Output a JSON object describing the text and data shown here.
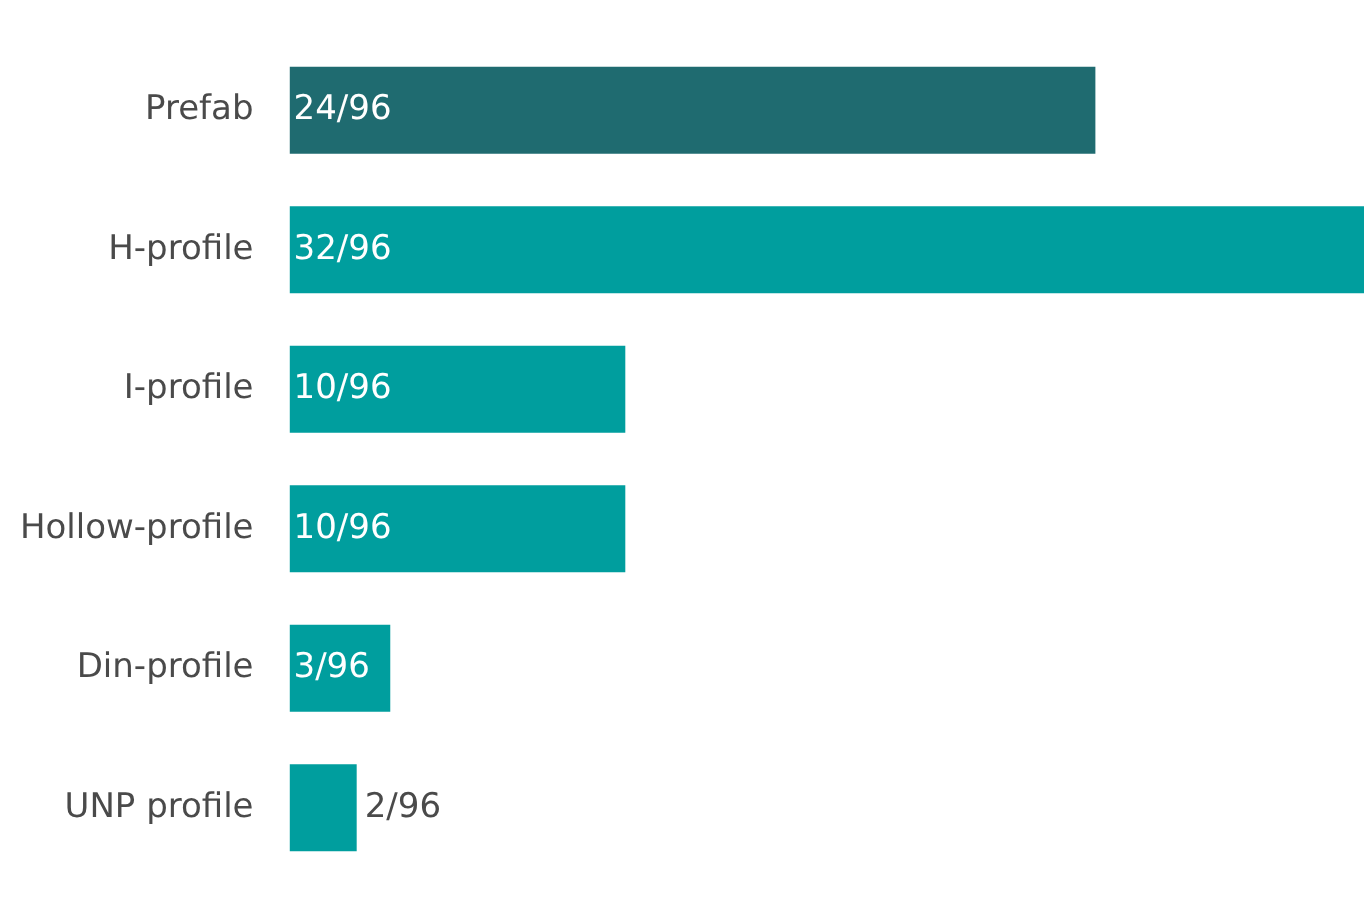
{
  "chart_data": {
    "type": "bar",
    "orientation": "horizontal",
    "categories": [
      "Prefab",
      "H-profile",
      "I-profile",
      "Hollow-profile",
      "Din-profile",
      "UNP profile"
    ],
    "values": [
      24,
      32,
      10,
      10,
      3,
      2
    ],
    "colors": [
      "#1f6b70",
      "#009e9e",
      "#009e9e",
      "#009e9e",
      "#009e9e",
      "#009e9e"
    ],
    "value_labels": [
      "24/96",
      "32/96",
      "10/96",
      "10/96",
      "3/96",
      "2/96"
    ],
    "legend": false
  }
}
